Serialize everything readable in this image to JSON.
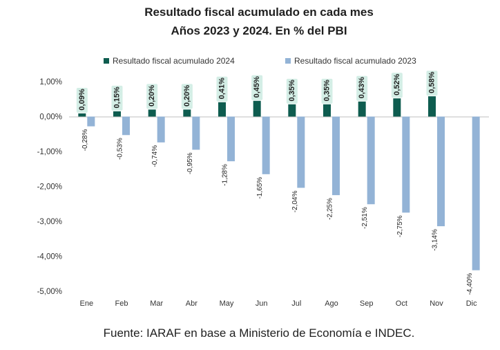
{
  "chart_data": {
    "type": "bar",
    "title": "Resultado fiscal acumulado en cada mes",
    "subtitle": "Años 2023 y 2024. En % del PBI",
    "categories": [
      "Ene",
      "Feb",
      "Mar",
      "Abr",
      "May",
      "Jun",
      "Jul",
      "Ago",
      "Sep",
      "Oct",
      "Nov",
      "Dic"
    ],
    "series": [
      {
        "name": "Resultado fiscal acumulado 2024",
        "color": "#0e5c4f",
        "label_bg": "#d4eee6",
        "values": [
          0.09,
          0.15,
          0.2,
          0.2,
          0.41,
          0.45,
          0.35,
          0.35,
          0.43,
          0.52,
          0.58,
          null
        ],
        "labels": [
          "0,09%",
          "0,15%",
          "0,20%",
          "0,20%",
          "0,41%",
          "0,45%",
          "0,35%",
          "0,35%",
          "0,43%",
          "0,52%",
          "0,58%",
          ""
        ]
      },
      {
        "name": "Resultado fiscal acumulado 2023",
        "color": "#93b3d6",
        "values": [
          -0.28,
          -0.53,
          -0.74,
          -0.95,
          -1.28,
          -1.65,
          -2.04,
          -2.25,
          -2.51,
          -2.75,
          -3.14,
          -4.4
        ],
        "labels": [
          "-0,28%",
          "-0,53%",
          "-0,74%",
          "-0,95%",
          "-1,28%",
          "-1,65%",
          "-2,04%",
          "-2,25%",
          "-2,51%",
          "-2,75%",
          "-3,14%",
          "-4,40%"
        ]
      }
    ],
    "yticks": [
      1,
      0,
      -1,
      -2,
      -3,
      -4,
      -5
    ],
    "ytick_labels": [
      "1,00%",
      "0,00%",
      "-1,00%",
      "-2,00%",
      "-3,00%",
      "-4,00%",
      "-5,00%"
    ],
    "ylim": [
      -5,
      1
    ],
    "xlabel": "",
    "ylabel": "",
    "grid": false,
    "legend_position": "top"
  },
  "source": "Fuente: IARAF en base a Ministerio de Economía e INDEC."
}
